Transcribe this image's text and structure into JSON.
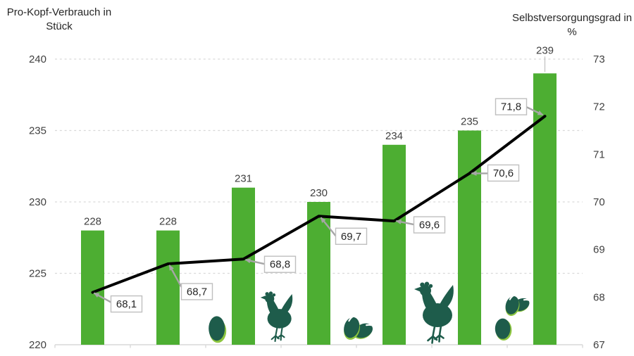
{
  "chart_data": {
    "type": "bar",
    "combo": "bar + line, dual y-axis",
    "categories": [
      "",
      "",
      "",
      "",
      "",
      "",
      ""
    ],
    "series": [
      {
        "name": "Pro-Kopf-Verbrauch in Stück",
        "type": "bar",
        "axis": "left",
        "values": [
          228,
          228,
          231,
          230,
          234,
          235,
          239
        ],
        "data_labels": [
          "228",
          "228",
          "231",
          "230",
          "234",
          "235",
          "239"
        ]
      },
      {
        "name": "Selbstversorgungsgrad in %",
        "type": "line",
        "axis": "right",
        "values": [
          68.1,
          68.7,
          68.8,
          69.7,
          69.6,
          70.6,
          71.8
        ],
        "data_labels": [
          "68,1",
          "68,7",
          "68,8",
          "69,7",
          "69,6",
          "70,6",
          "71,8"
        ]
      }
    ],
    "left_axis": {
      "title": "Pro-Kopf-Verbrauch in\nStück",
      "min": 220,
      "max": 240,
      "ticks": [
        220,
        225,
        230,
        235,
        240
      ]
    },
    "right_axis": {
      "title": "Selbstversorgungsgrad in\n%",
      "min": 67,
      "max": 73,
      "ticks": [
        67,
        68,
        69,
        70,
        71,
        72,
        73
      ]
    },
    "x_axis": {
      "labels_visible": false
    },
    "grid": {
      "horizontal": "dashed",
      "at_left_ticks": true
    },
    "legend": "none"
  },
  "colors": {
    "bar": "#4dae32",
    "line": "#000000",
    "grid": "#d9d9d9",
    "axis": "#d9d9d9",
    "tick_text": "#404040",
    "title_text": "#262626",
    "label_box_border": "#bfbfbf",
    "label_box_fill": "#ffffff",
    "arrow": "#a6a6a6",
    "icon": "#1e5c4b",
    "icon_accent": "#8dc63f"
  },
  "decorative_icons": [
    {
      "name": "egg-icon",
      "desc": "single egg"
    },
    {
      "name": "hen-icon",
      "desc": "hen silhouette"
    },
    {
      "name": "egg-pair-icon",
      "desc": "two eggs"
    },
    {
      "name": "hen-icon-large",
      "desc": "large hen silhouette"
    },
    {
      "name": "egg-group-icon",
      "desc": "two eggs plus single egg"
    }
  ]
}
